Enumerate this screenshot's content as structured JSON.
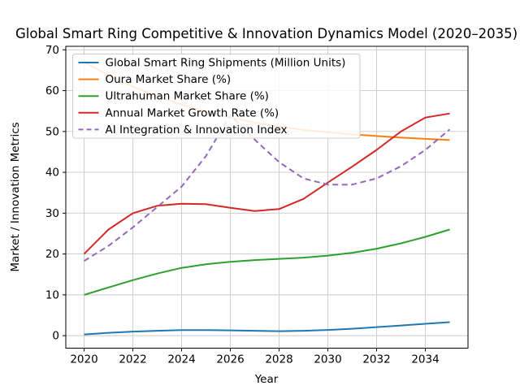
{
  "figure": {
    "background": "#ffffff",
    "plot_background": "#ffffff",
    "grid_color": "#c9c9c9",
    "spine_color": "#000000",
    "legend_border_color": "#cccccc",
    "legend_fill_opacity": 0.85
  },
  "chart_data": {
    "type": "line",
    "title": "Global Smart Ring Competitive & Innovation Dynamics Model (2020–2035)",
    "xlabel": "Year",
    "ylabel": "Market / Innovation Metrics",
    "grid": true,
    "legend_position": "upper left",
    "xlim": [
      2019.25,
      2035.75
    ],
    "ylim": [
      -3.06,
      70.86
    ],
    "x_ticks": [
      2020,
      2022,
      2024,
      2026,
      2028,
      2030,
      2032,
      2034
    ],
    "y_ticks": [
      0,
      10,
      20,
      30,
      40,
      50,
      60,
      70
    ],
    "x": [
      2020,
      2021,
      2022,
      2023,
      2024,
      2025,
      2026,
      2027,
      2028,
      2029,
      2030,
      2031,
      2032,
      2033,
      2034,
      2035
    ],
    "series": [
      {
        "name": "Global Smart Ring Shipments (Million Units)",
        "color": "#1f77b4",
        "style": "solid",
        "values": [
          0.3,
          0.7,
          1.0,
          1.2,
          1.35,
          1.35,
          1.3,
          1.2,
          1.1,
          1.2,
          1.4,
          1.7,
          2.1,
          2.5,
          2.9,
          3.3
        ]
      },
      {
        "name": "Oura Market Share (%)",
        "color": "#ff7f0e",
        "style": "solid",
        "values": [
          67,
          63.8,
          61,
          58.6,
          56.6,
          54.9,
          53.4,
          52.2,
          51.2,
          50.4,
          49.8,
          49.3,
          48.9,
          48.5,
          48.2,
          47.9
        ]
      },
      {
        "name": "Ultrahuman Market Share (%)",
        "color": "#2ca02c",
        "style": "solid",
        "values": [
          10,
          11.8,
          13.6,
          15.2,
          16.6,
          17.5,
          18.1,
          18.5,
          18.8,
          19.1,
          19.6,
          20.3,
          21.3,
          22.6,
          24.2,
          26
        ]
      },
      {
        "name": "Annual Market Growth Rate (%)",
        "color": "#d62728",
        "style": "solid",
        "values": [
          20,
          26,
          30,
          31.8,
          32.3,
          32.2,
          31.3,
          30.5,
          31,
          33.5,
          37.5,
          41.4,
          45.5,
          50,
          53.4,
          54.4
        ]
      },
      {
        "name": "AI Integration & Innovation Index",
        "color": "#9467bd",
        "style": "dashed",
        "values": [
          18.3,
          22,
          26.5,
          31.5,
          36.5,
          44,
          54,
          48,
          42.5,
          38.5,
          37,
          37,
          38.5,
          41.5,
          45.5,
          50.5
        ]
      }
    ]
  }
}
